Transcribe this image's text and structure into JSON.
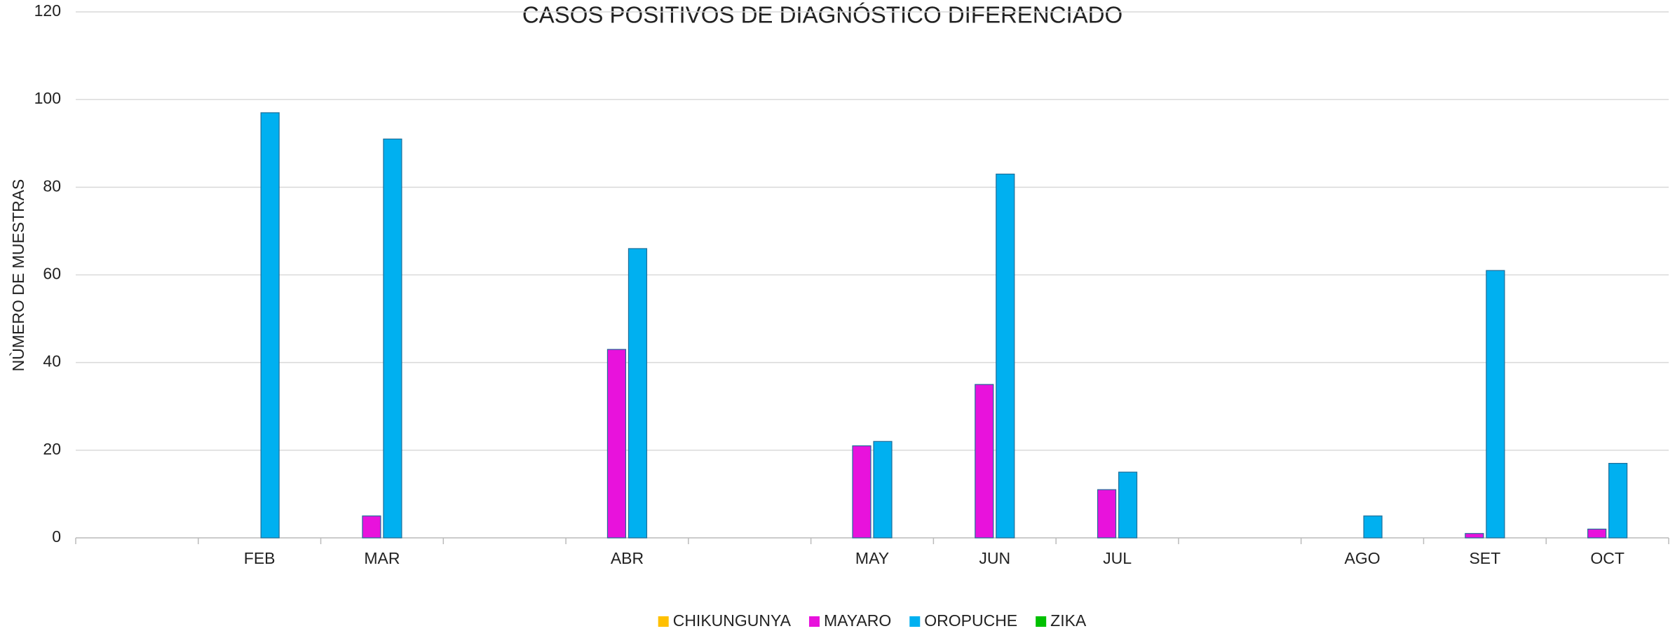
{
  "chart_data": {
    "type": "bar",
    "title": "CASOS POSITIVOS DE DIAGNÓSTICO DIFERENCIADO",
    "y_label": "NÙMERO DE MUESTRAS",
    "categories": [
      null,
      "FEB",
      "MAR",
      null,
      "ABR",
      null,
      "MAY",
      "JUN",
      "JUL",
      null,
      "AGO",
      "SET",
      "OCT"
    ],
    "series": [
      {
        "name": "CHIKUNGUNYA",
        "color": "#ffc000",
        "values": [
          null,
          0,
          0,
          null,
          0,
          null,
          0,
          0,
          0,
          null,
          0,
          0,
          0
        ]
      },
      {
        "name": "MAYARO",
        "color": "#e812dc",
        "values": [
          null,
          0,
          5,
          null,
          43,
          null,
          21,
          35,
          11,
          null,
          0,
          1,
          2
        ]
      },
      {
        "name": "OROPUCHE",
        "color": "#00b0f0",
        "values": [
          null,
          97,
          91,
          null,
          66,
          null,
          22,
          83,
          15,
          null,
          5,
          61,
          17
        ]
      },
      {
        "name": "ZIKA",
        "color": "#00c000",
        "values": [
          null,
          0,
          0,
          null,
          0,
          null,
          0,
          0,
          0,
          null,
          0,
          0,
          0
        ]
      }
    ],
    "ylim": [
      0,
      120
    ],
    "yticks": [
      0,
      20,
      40,
      60,
      80,
      100,
      120
    ],
    "grid": true,
    "legend": "bottom"
  }
}
